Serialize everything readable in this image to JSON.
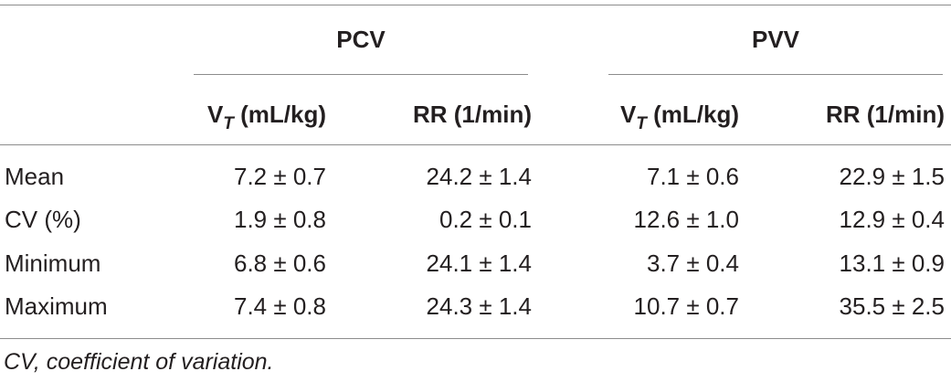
{
  "table": {
    "groups": [
      {
        "label": "PCV"
      },
      {
        "label": "PVV"
      }
    ],
    "columns": [
      {
        "main": "V",
        "sub": "T",
        "unit": " (mL/kg)"
      },
      {
        "main": "RR (1/min)"
      },
      {
        "main": "V",
        "sub": "T",
        "unit": " (mL/kg)"
      },
      {
        "main": "RR (1/min)"
      }
    ],
    "rows": [
      {
        "label": "Mean",
        "values": [
          "7.2 ± 0.7",
          "24.2 ± 1.4",
          "7.1 ± 0.6",
          "22.9 ± 1.5"
        ]
      },
      {
        "label": "CV (%)",
        "values": [
          "1.9 ± 0.8",
          "0.2 ± 0.1",
          "12.6 ± 1.0",
          "12.9 ± 0.4"
        ]
      },
      {
        "label": "Minimum",
        "values": [
          "6.8 ± 0.6",
          "24.1 ± 1.4",
          "3.7 ± 0.4",
          "13.1 ± 0.9"
        ]
      },
      {
        "label": "Maximum",
        "values": [
          "7.4 ± 0.8",
          "24.3 ± 1.4",
          "10.7 ± 0.7",
          "35.5 ± 2.5"
        ]
      }
    ],
    "footnote": "CV, coefficient of variation."
  }
}
